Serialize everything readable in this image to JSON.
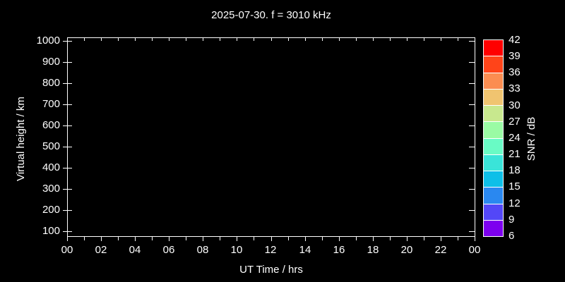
{
  "window": {
    "background": "#000000",
    "foreground": "#ffffff"
  },
  "chart_data": {
    "type": "heatmap",
    "title": "2025-07-30. f = 3010 kHz",
    "xlabel": "UT Time / hrs",
    "ylabel": "Virtual height / km",
    "x_tick_labels": [
      "00",
      "02",
      "04",
      "06",
      "08",
      "10",
      "12",
      "14",
      "16",
      "18",
      "20",
      "22",
      "00"
    ],
    "x_minor_tick_interval_hrs": 1,
    "xlim_hrs": [
      0,
      24
    ],
    "y_tick_labels": [
      "1000",
      "900",
      "800",
      "700",
      "600",
      "500",
      "400",
      "300",
      "200",
      "100"
    ],
    "ylim_km": [
      100,
      1000
    ],
    "grid": false,
    "plot_background": "#000000",
    "values": [],
    "colorbar": {
      "label": "SNR / dB",
      "tick_labels": [
        "42",
        "39",
        "36",
        "33",
        "30",
        "27",
        "24",
        "21",
        "18",
        "15",
        "12",
        "9",
        "6"
      ],
      "segments_top_to_bottom": [
        "#ff0000",
        "#ff4419",
        "#fb8d51",
        "#f0c470",
        "#c8e88e",
        "#9afba4",
        "#69fbc5",
        "#3ae4d9",
        "#0ebfe8",
        "#2a88f0",
        "#5347f7",
        "#7d00ef"
      ]
    }
  }
}
